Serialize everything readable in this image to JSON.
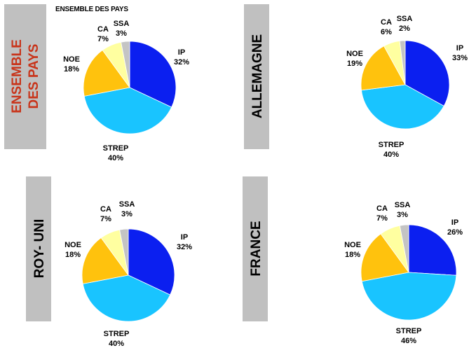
{
  "colors": {
    "IP": "#0b1ff0",
    "STREP": "#19c4ff",
    "NOE": "#ffc20d",
    "CA": "#ffffa0",
    "SSA": "#c4c4c4",
    "title_red": "#c8341a",
    "title_black": "#000000",
    "label_bg": "#c0c0c0"
  },
  "chart_data": [
    {
      "type": "pie",
      "title_lines": [
        "ENSEMBLE",
        "DES PAYS"
      ],
      "subtitle": "ENSEMBLE DES PAYS",
      "slices": [
        {
          "label": "IP",
          "value": 32,
          "pct_text": "32%"
        },
        {
          "label": "STREP",
          "value": 40,
          "pct_text": "40%"
        },
        {
          "label": "NOE",
          "value": 18,
          "pct_text": "18%"
        },
        {
          "label": "CA",
          "value": 7,
          "pct_text": "7%"
        },
        {
          "label": "SSA",
          "value": 3,
          "pct_text": "3%"
        }
      ]
    },
    {
      "type": "pie",
      "title_lines": [
        "ALLEMAGNE"
      ],
      "slices": [
        {
          "label": "IP",
          "value": 33,
          "pct_text": "33%"
        },
        {
          "label": "STREP",
          "value": 40,
          "pct_text": "40%"
        },
        {
          "label": "NOE",
          "value": 19,
          "pct_text": "19%"
        },
        {
          "label": "CA",
          "value": 6,
          "pct_text": "6%"
        },
        {
          "label": "SSA",
          "value": 2,
          "pct_text": "2%"
        }
      ]
    },
    {
      "type": "pie",
      "title_lines": [
        "ROY- UNI"
      ],
      "slices": [
        {
          "label": "IP",
          "value": 32,
          "pct_text": "32%"
        },
        {
          "label": "STREP",
          "value": 40,
          "pct_text": "40%"
        },
        {
          "label": "NOE",
          "value": 18,
          "pct_text": "18%"
        },
        {
          "label": "CA",
          "value": 7,
          "pct_text": "7%"
        },
        {
          "label": "SSA",
          "value": 3,
          "pct_text": "3%"
        }
      ]
    },
    {
      "type": "pie",
      "title_lines": [
        "FRANCE"
      ],
      "slices": [
        {
          "label": "IP",
          "value": 26,
          "pct_text": "26%"
        },
        {
          "label": "STREP",
          "value": 46,
          "pct_text": "46%"
        },
        {
          "label": "NOE",
          "value": 18,
          "pct_text": "18%"
        },
        {
          "label": "CA",
          "value": 7,
          "pct_text": "7%"
        },
        {
          "label": "SSA",
          "value": 3,
          "pct_text": "3%"
        }
      ]
    }
  ]
}
